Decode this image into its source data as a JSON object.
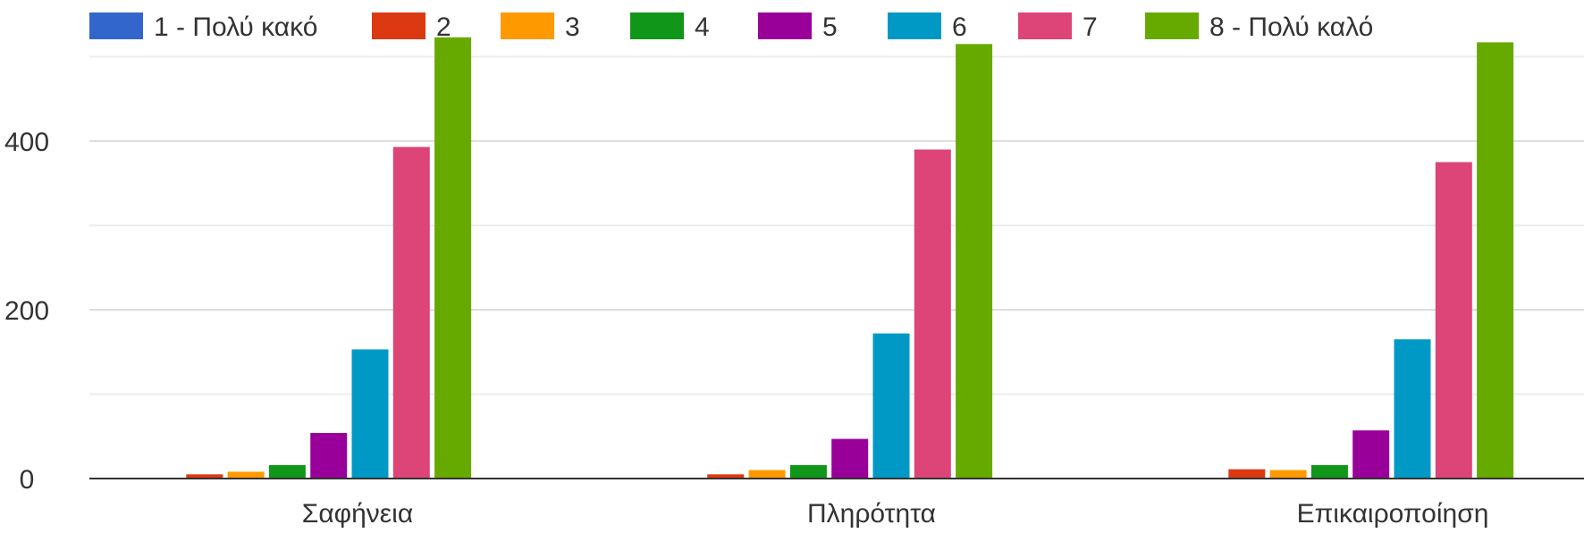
{
  "chart_data": {
    "type": "bar",
    "title": "",
    "xlabel": "",
    "ylabel": "",
    "ylim": [
      0,
      520
    ],
    "yticks": [
      0,
      200,
      400
    ],
    "grid": true,
    "legend_position": "top",
    "categories": [
      "Σαφήνεια",
      "Πληρότητα",
      "Επικαιροποίηση"
    ],
    "series": [
      {
        "name": "1 - Πολύ κακό",
        "color": "#3366cc",
        "values": [
          0,
          0,
          0
        ]
      },
      {
        "name": "2",
        "color": "#dc3912",
        "values": [
          5,
          5,
          11
        ]
      },
      {
        "name": "3",
        "color": "#ff9900",
        "values": [
          8,
          10,
          10
        ]
      },
      {
        "name": "4",
        "color": "#109618",
        "values": [
          16,
          16,
          16
        ]
      },
      {
        "name": "5",
        "color": "#990099",
        "values": [
          54,
          47,
          57
        ]
      },
      {
        "name": "6",
        "color": "#0099c6",
        "values": [
          153,
          172,
          165
        ]
      },
      {
        "name": "7",
        "color": "#dd4477",
        "values": [
          393,
          390,
          375
        ]
      },
      {
        "name": "8 - Πολύ καλό",
        "color": "#66aa00",
        "values": [
          523,
          515,
          517
        ]
      }
    ]
  }
}
